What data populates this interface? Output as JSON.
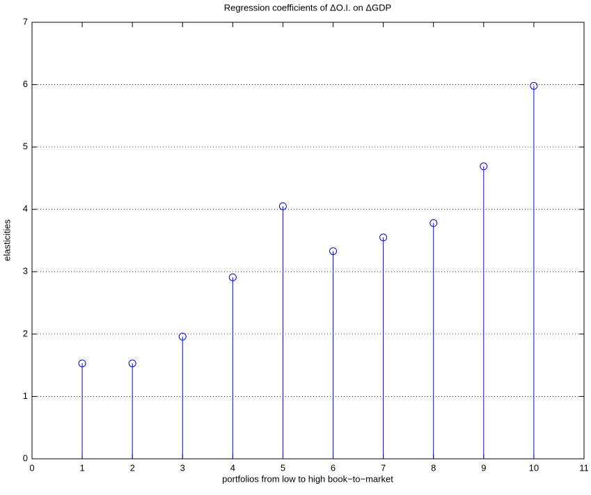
{
  "chart_data": {
    "type": "stem",
    "title": "Regression coefficients of ΔO.I. on ΔGDP",
    "x_label": "portfolios from low to high book−to−market",
    "y_label": "elasticities",
    "x": [
      1,
      2,
      3,
      4,
      5,
      6,
      7,
      8,
      9,
      10
    ],
    "values": [
      1.53,
      1.53,
      1.96,
      2.91,
      4.05,
      3.33,
      3.55,
      3.78,
      4.69,
      5.98
    ],
    "color": "#0000ff",
    "xlim": [
      0,
      11
    ],
    "xticks": [
      0,
      1,
      2,
      3,
      4,
      5,
      6,
      7,
      8,
      9,
      10,
      11
    ],
    "ylim": [
      0,
      7
    ],
    "yticks": [
      0,
      1,
      2,
      3,
      4,
      5,
      6,
      7
    ],
    "grid": true
  }
}
